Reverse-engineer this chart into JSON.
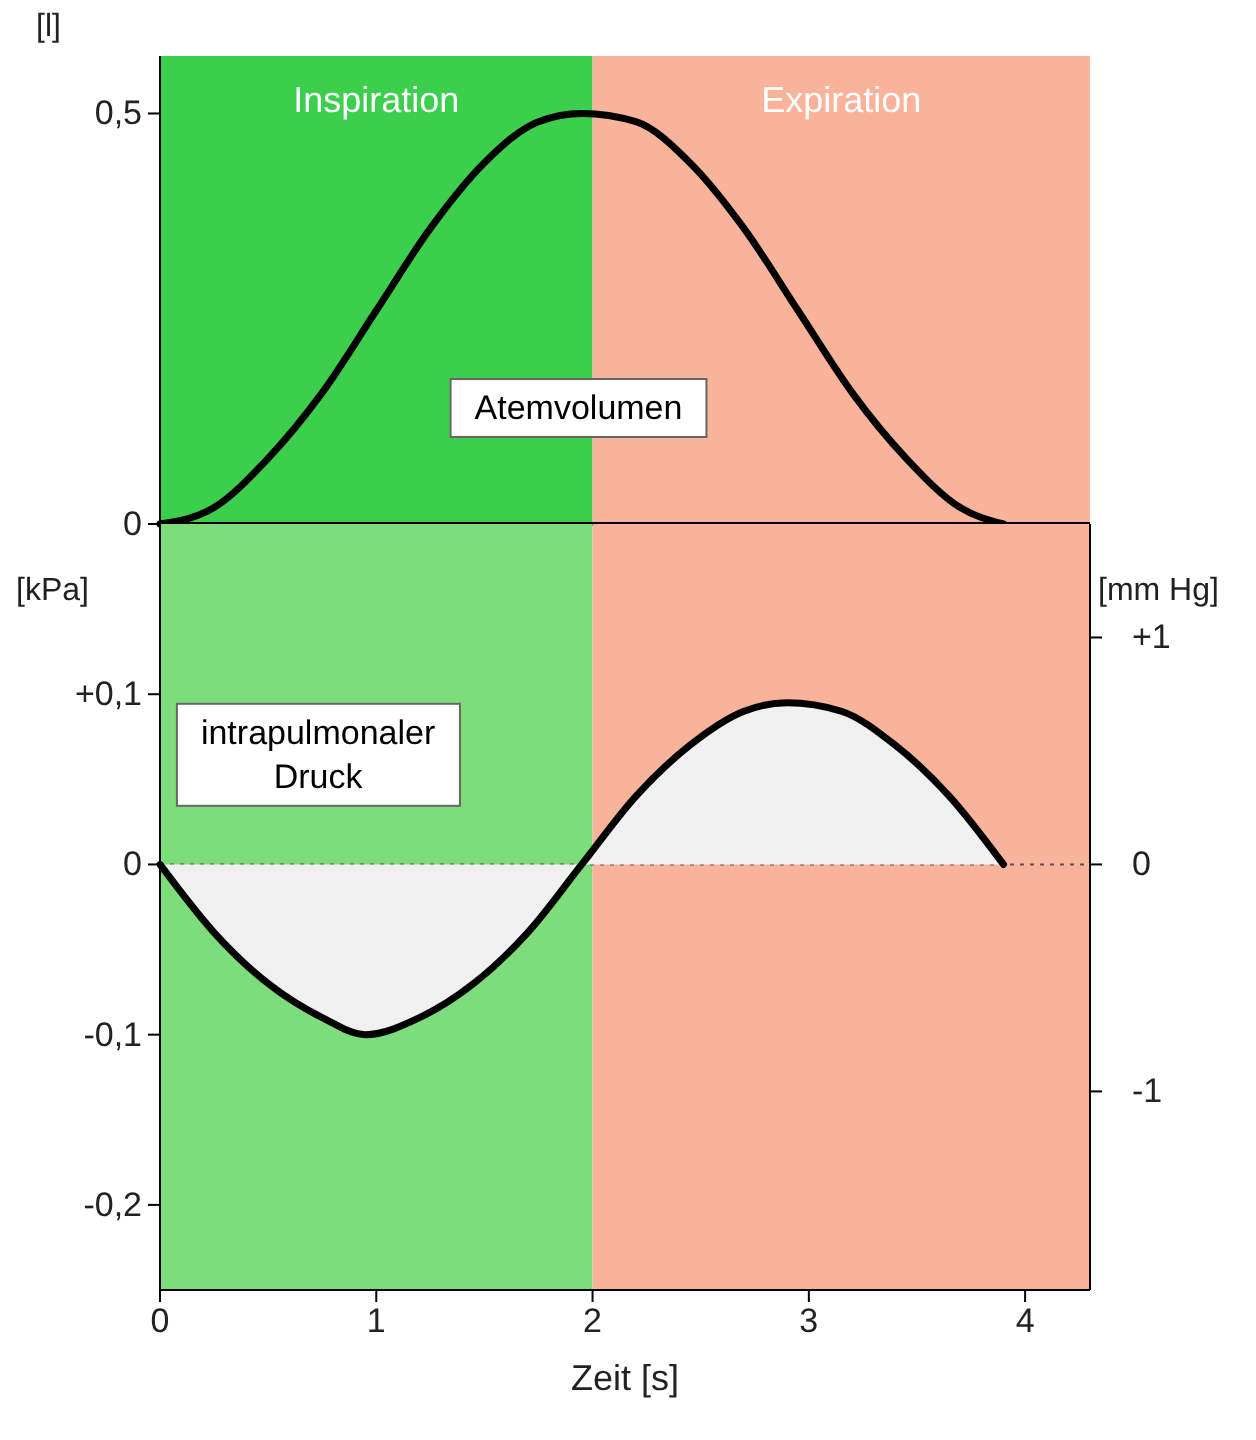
{
  "chart_data": [
    {
      "type": "line",
      "ylabel": "[l]",
      "xlim": [
        0,
        4.3
      ],
      "ylim": [
        0,
        0.57
      ],
      "yticks": [
        0,
        {
          "value": 0.5,
          "label": "0,5"
        }
      ],
      "tick_labels": "y",
      "bands": [
        {
          "axis": "x",
          "from": 0,
          "to": 2,
          "label": "Inspiration",
          "color": "#3ccf4e"
        },
        {
          "axis": "x",
          "from": 2,
          "to": 4.3,
          "label": "Expiration",
          "color": "#f9b39a"
        }
      ],
      "series": [
        {
          "name": "Atemvolumen",
          "color": "#000000",
          "x": [
            0,
            0.25,
            0.5,
            0.75,
            1,
            1.25,
            1.5,
            1.75,
            1.95,
            2.2,
            2.45,
            2.7,
            2.95,
            3.2,
            3.45,
            3.7,
            3.9
          ],
          "values": [
            0,
            0.02,
            0.08,
            0.16,
            0.26,
            0.36,
            0.44,
            0.49,
            0.5,
            0.49,
            0.44,
            0.36,
            0.26,
            0.16,
            0.08,
            0.02,
            0
          ]
        }
      ]
    },
    {
      "type": "area",
      "ylabel": "[kPa]",
      "y2label": "[mm Hg]",
      "xlabel": "Zeit [s]",
      "xlim": [
        0,
        4.3
      ],
      "xticks": [
        0,
        1,
        2,
        3,
        4
      ],
      "ylim": [
        -0.25,
        0.2
      ],
      "yticks": [
        {
          "value": 0.1,
          "label": "+0,1"
        },
        0,
        {
          "value": -0.1,
          "label": "-0,1"
        },
        {
          "value": -0.2,
          "label": "-0,2"
        }
      ],
      "y2lim": [
        -1.875,
        1.5
      ],
      "y2ticks": [
        {
          "value": 1,
          "label": "+1"
        },
        0,
        {
          "value": -1,
          "label": "-1"
        }
      ],
      "bands": [
        {
          "axis": "x",
          "from": 0,
          "to": 2,
          "label": null,
          "color": "#7ddd7a"
        },
        {
          "axis": "x",
          "from": 2,
          "to": 4.3,
          "label": null,
          "color": "#f9b39a"
        }
      ],
      "ref_lines": [
        {
          "axis": "y",
          "value": 0,
          "label": null,
          "line_style": "dotted",
          "color": "#555555"
        }
      ],
      "series": [
        {
          "name": "intrapulmonaler Druck",
          "color": "#000000",
          "x": [
            0,
            0.25,
            0.5,
            0.75,
            0.95,
            1.2,
            1.45,
            1.7,
            1.95,
            2.2,
            2.45,
            2.7,
            2.9,
            3.15,
            3.4,
            3.65,
            3.9
          ],
          "values": [
            0,
            -0.04,
            -0.07,
            -0.09,
            -0.1,
            -0.09,
            -0.07,
            -0.04,
            0,
            0.04,
            0.07,
            0.09,
            0.095,
            0.09,
            0.07,
            0.04,
            0
          ]
        }
      ]
    }
  ]
}
